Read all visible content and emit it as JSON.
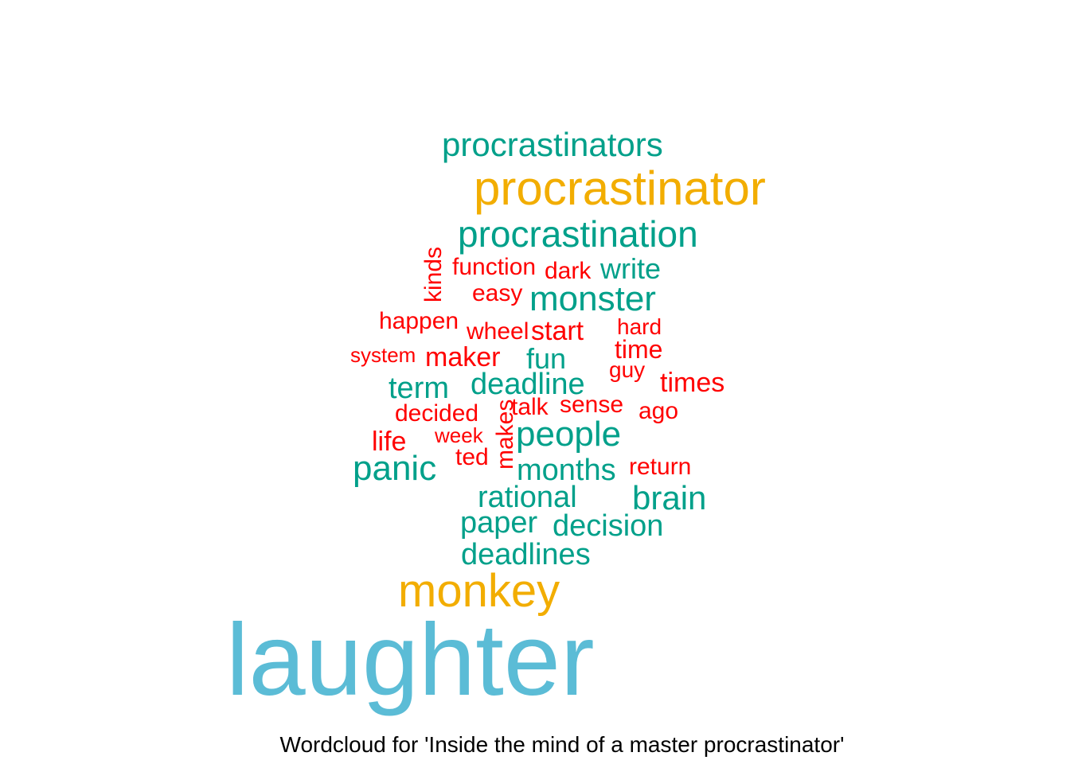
{
  "chart_data": {
    "type": "wordcloud",
    "caption": "Wordcloud for 'Inside the mind of a master procrastinator'",
    "colors": {
      "tier1": "#5BBCD6",
      "tier2": "#F2AD00",
      "tier3": "#00A08A",
      "tier4": "#FF0000"
    },
    "words": [
      {
        "word": "laughter",
        "tier": 1
      },
      {
        "word": "monkey",
        "tier": 2
      },
      {
        "word": "procrastinator",
        "tier": 2
      },
      {
        "word": "procrastinators",
        "tier": 3
      },
      {
        "word": "procrastination",
        "tier": 3
      },
      {
        "word": "monster",
        "tier": 3
      },
      {
        "word": "write",
        "tier": 3
      },
      {
        "word": "fun",
        "tier": 3
      },
      {
        "word": "term",
        "tier": 3
      },
      {
        "word": "deadline",
        "tier": 3
      },
      {
        "word": "people",
        "tier": 3
      },
      {
        "word": "panic",
        "tier": 3
      },
      {
        "word": "months",
        "tier": 3
      },
      {
        "word": "rational",
        "tier": 3
      },
      {
        "word": "brain",
        "tier": 3
      },
      {
        "word": "paper",
        "tier": 3
      },
      {
        "word": "decision",
        "tier": 3
      },
      {
        "word": "deadlines",
        "tier": 3
      },
      {
        "word": "kinds",
        "tier": 4
      },
      {
        "word": "function",
        "tier": 4
      },
      {
        "word": "dark",
        "tier": 4
      },
      {
        "word": "easy",
        "tier": 4
      },
      {
        "word": "happen",
        "tier": 4
      },
      {
        "word": "wheel",
        "tier": 4
      },
      {
        "word": "start",
        "tier": 4
      },
      {
        "word": "hard",
        "tier": 4
      },
      {
        "word": "system",
        "tier": 4
      },
      {
        "word": "maker",
        "tier": 4
      },
      {
        "word": "time",
        "tier": 4
      },
      {
        "word": "guy",
        "tier": 4
      },
      {
        "word": "times",
        "tier": 4
      },
      {
        "word": "decided",
        "tier": 4
      },
      {
        "word": "makes",
        "tier": 4
      },
      {
        "word": "talk",
        "tier": 4
      },
      {
        "word": "sense",
        "tier": 4
      },
      {
        "word": "ago",
        "tier": 4
      },
      {
        "word": "life",
        "tier": 4
      },
      {
        "word": "week",
        "tier": 4
      },
      {
        "word": "ted",
        "tier": 4
      },
      {
        "word": "return",
        "tier": 4
      }
    ]
  }
}
